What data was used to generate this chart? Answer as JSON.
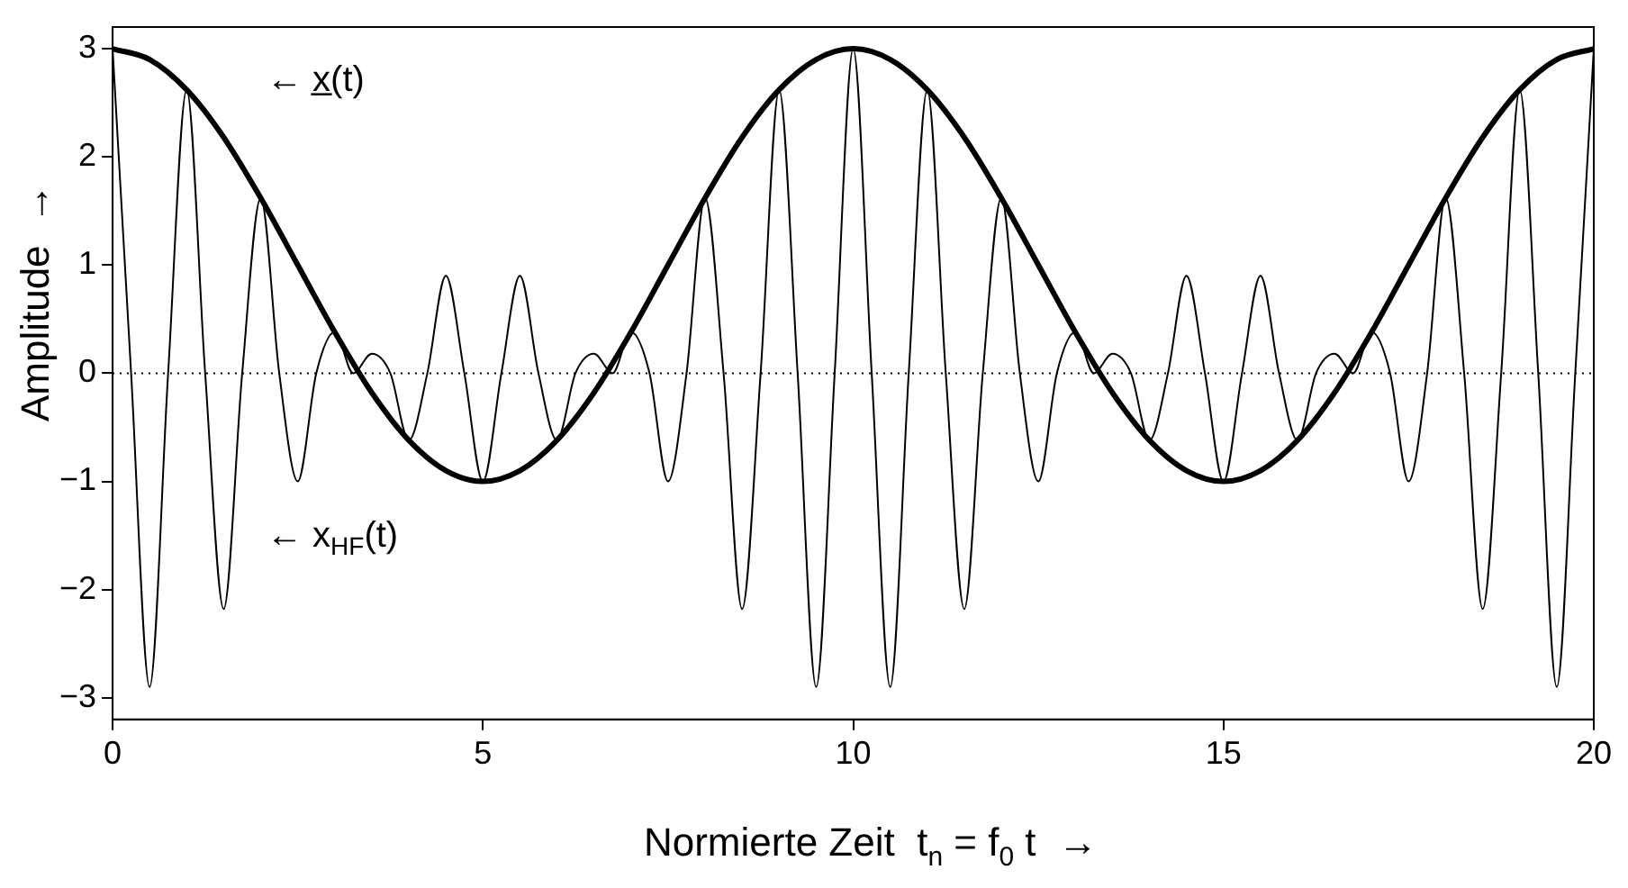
{
  "chart_data": {
    "type": "line",
    "xlabel": "Normierte Zeit  t$_{n}$ = f$_{0}$ t  →",
    "ylabel": "Amplitude  →",
    "xlim": [
      0,
      20
    ],
    "ylim": [
      -3.2,
      3.2
    ],
    "xticks": [
      0,
      5,
      10,
      15,
      20
    ],
    "yticks": [
      -3,
      -2,
      -1,
      0,
      1,
      2,
      3
    ],
    "grid": false,
    "legend": false,
    "marker": "none",
    "series": [
      {
        "color": "#000000",
        "line_style": "solid",
        "x": [
          0,
          0.25,
          0.5,
          0.75,
          1,
          1.25,
          1.5,
          1.75,
          2,
          2.25,
          2.5,
          2.75,
          3,
          3.25,
          3.5,
          3.75,
          4,
          4.25,
          4.5,
          4.75,
          5,
          5.25,
          5.5,
          5.75,
          6,
          6.25,
          6.5,
          6.75,
          7,
          7.25,
          7.5,
          7.75,
          8,
          8.25,
          8.5,
          8.75,
          9,
          9.25,
          9.5,
          9.75,
          10,
          10.25,
          10.5,
          10.75,
          11,
          11.25,
          11.5,
          11.75,
          12,
          12.25,
          12.5,
          12.75,
          13,
          13.25,
          13.5,
          13.75,
          14,
          14.25,
          14.5,
          14.75,
          15,
          15.25,
          15.5,
          15.75,
          16,
          16.25,
          16.5,
          16.75,
          17,
          17.25,
          17.5,
          17.75,
          18,
          18.25,
          18.5,
          18.75,
          19,
          19.25,
          19.5,
          19.75,
          20
        ],
        "values": [
          3,
          0,
          -2.9,
          0,
          2.62,
          0,
          -2.18,
          0,
          1.62,
          0,
          -1,
          0,
          0.38,
          0,
          0.18,
          0,
          -0.62,
          0,
          0.9,
          0,
          -1,
          0,
          0.9,
          0,
          -0.62,
          0,
          0.18,
          0,
          0.38,
          0,
          -1,
          0,
          1.62,
          0,
          -2.18,
          0,
          2.62,
          0,
          -2.9,
          0,
          3,
          0,
          -2.9,
          0,
          2.62,
          0,
          -2.18,
          0,
          1.62,
          0,
          -1,
          0,
          0.38,
          0,
          0.18,
          0,
          -0.62,
          0,
          0.9,
          0,
          -1,
          0,
          0.9,
          0,
          -0.62,
          0,
          0.18,
          0,
          0.38,
          0,
          -1,
          0,
          1.62,
          0,
          -2.18,
          0,
          2.62,
          0,
          -2.9,
          0,
          3
        ]
      },
      {
        "color": "#000000",
        "line_style": "solid",
        "x": [
          0,
          0.5,
          1,
          1.5,
          2,
          2.5,
          3,
          3.5,
          4,
          4.5,
          5,
          5.5,
          6,
          6.5,
          7,
          7.5,
          8,
          8.5,
          9,
          9.5,
          10,
          10.5,
          11,
          11.5,
          12,
          12.5,
          13,
          13.5,
          14,
          14.5,
          15,
          15.5,
          16,
          16.5,
          17,
          17.5,
          18,
          18.5,
          19,
          19.5,
          20
        ],
        "values": [
          3,
          2.9,
          2.62,
          2.18,
          1.62,
          1,
          0.38,
          -0.18,
          -0.62,
          -0.9,
          -1,
          -0.9,
          -0.62,
          -0.18,
          0.38,
          1,
          1.62,
          2.18,
          2.62,
          2.9,
          3,
          2.9,
          2.62,
          2.18,
          1.62,
          1,
          0.38,
          -0.18,
          -0.62,
          -0.9,
          -1,
          -0.9,
          -0.62,
          -0.18,
          0.38,
          1,
          1.62,
          2.18,
          2.62,
          2.9,
          3
        ]
      }
    ],
    "ref_lines": [
      {
        "axis": "y",
        "value": 0,
        "line_style": "dotted",
        "color": "#000000"
      }
    ],
    "annotations": [
      "← x̲(t)",
      "← x$_{HF}$(t)"
    ]
  }
}
